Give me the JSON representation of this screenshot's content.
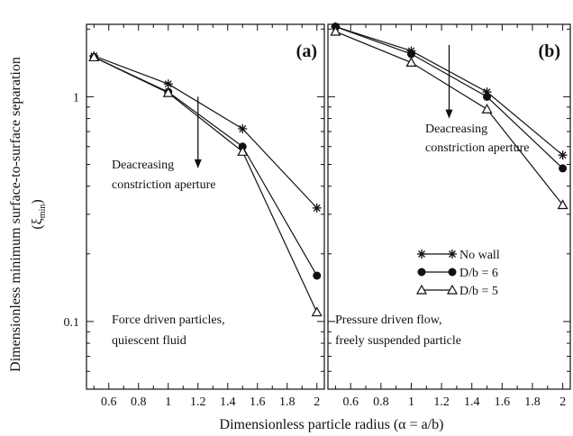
{
  "figure": {
    "ylabel": "Dimensionless minimum surface-to-surface separation",
    "ylabel_symbol": "(ξ",
    "ylabel_sub": "min",
    "ylabel_close": ")",
    "xlabel": "Dimensionless particle radius (α = a/b)"
  },
  "chart_data": [
    {
      "type": "line",
      "panel_label": "(a)",
      "x_scale": "linear",
      "y_scale": "log",
      "xlim": [
        0.45,
        2.05
      ],
      "ylim": [
        0.05,
        2.1
      ],
      "x_ticks": [
        0.6,
        0.8,
        1,
        1.2,
        1.4,
        1.6,
        1.8,
        2
      ],
      "x_tick_labels": [
        "0.6",
        "0.8",
        "1",
        "1.2",
        "1.4",
        "1.6",
        "1.8",
        "2"
      ],
      "y_ticks": [
        0.1,
        1
      ],
      "y_tick_labels": [
        "0.1",
        "1"
      ],
      "x": [
        0.5,
        1,
        1.5,
        2
      ],
      "series": [
        {
          "marker": "star",
          "values": [
            1.52,
            1.14,
            0.72,
            0.32
          ]
        },
        {
          "marker": "filled-circle",
          "values": [
            1.5,
            1.05,
            0.6,
            0.16
          ]
        },
        {
          "marker": "open-triangle",
          "values": [
            1.5,
            1.04,
            0.57,
            0.11
          ]
        }
      ],
      "annotations": {
        "arrow_text_line1": "Deacreasing",
        "arrow_text_line2": "constriction aperture",
        "note_line1": "Force driven particles,",
        "note_line2": "quiescent fluid"
      },
      "arrow": {
        "x": 1.2,
        "y_from": 1.0,
        "y_to": 0.48
      }
    },
    {
      "type": "line",
      "panel_label": "(b)",
      "x_scale": "linear",
      "y_scale": "log",
      "xlim": [
        0.45,
        2.05
      ],
      "ylim": [
        0.05,
        2.1
      ],
      "x_ticks": [
        0.6,
        0.8,
        1,
        1.2,
        1.4,
        1.6,
        1.8,
        2
      ],
      "x_tick_labels": [
        "0.6",
        "0.8",
        "1",
        "1.2",
        "1.4",
        "1.6",
        "1.8",
        "2"
      ],
      "y_ticks": [
        0.1,
        1
      ],
      "y_tick_labels": [],
      "x": [
        0.5,
        1,
        1.5,
        2
      ],
      "series": [
        {
          "name": "No wall",
          "marker": "star",
          "values": [
            2.05,
            1.6,
            1.05,
            0.55
          ]
        },
        {
          "name": "D/b = 6",
          "marker": "filled-circle",
          "values": [
            2.05,
            1.55,
            1.0,
            0.48
          ]
        },
        {
          "name": "D/b = 5",
          "marker": "open-triangle",
          "values": [
            1.95,
            1.42,
            0.88,
            0.33
          ]
        }
      ],
      "legend_position": "center-right",
      "annotations": {
        "arrow_text_line1": "Deacreasing",
        "arrow_text_line2": "constriction aperture",
        "note_line1": "Pressure driven flow,",
        "note_line2": "freely suspended particle"
      },
      "arrow": {
        "x": 1.25,
        "y_from": 1.7,
        "y_to": 0.8
      }
    }
  ]
}
